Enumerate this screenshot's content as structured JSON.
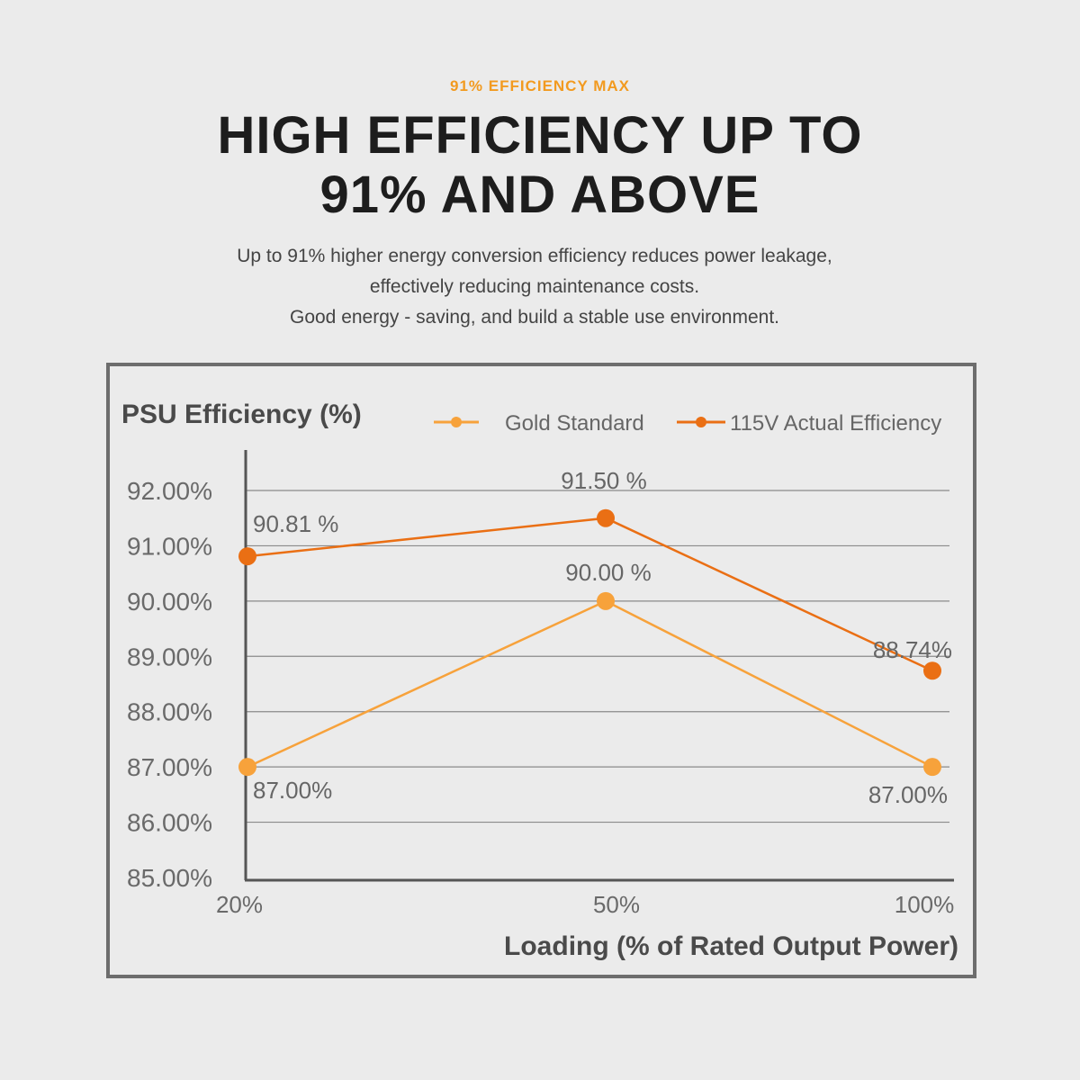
{
  "header": {
    "eyebrow": "91% EFFICIENCY MAX",
    "headline_lines": [
      "HIGH EFFICIENCY UP TO",
      "91% AND ABOVE"
    ],
    "description_lines": [
      "Up to 91% higher energy conversion efficiency reduces power leakage,",
      "effectively reducing maintenance costs.",
      "Good energy - saving, and build a stable use environment."
    ]
  },
  "chart_data": {
    "type": "line",
    "title": "PSU Efficiency (%)",
    "xlabel": "Loading (% of Rated Output Power)",
    "ylabel": "",
    "categories": [
      "20%",
      "50%",
      "100%"
    ],
    "ylim": [
      85,
      92
    ],
    "yticks": [
      "92.00%",
      "91.00%",
      "90.00%",
      "89.00%",
      "88.00%",
      "87.00%",
      "86.00%",
      "85.00%"
    ],
    "grid": true,
    "legend_position": "top-right",
    "series": [
      {
        "name": "Gold  Standard",
        "color": "#f7a23b",
        "values": [
          87.0,
          90.0,
          87.0
        ],
        "labels": [
          "87.00%",
          "90.00 %",
          "87.00%"
        ]
      },
      {
        "name": "115V  Actual Efficiency",
        "color": "#ea6f14",
        "values": [
          90.81,
          91.5,
          88.74
        ],
        "labels": [
          "90.81 %",
          "91.50 %",
          "88.74%"
        ]
      }
    ]
  }
}
